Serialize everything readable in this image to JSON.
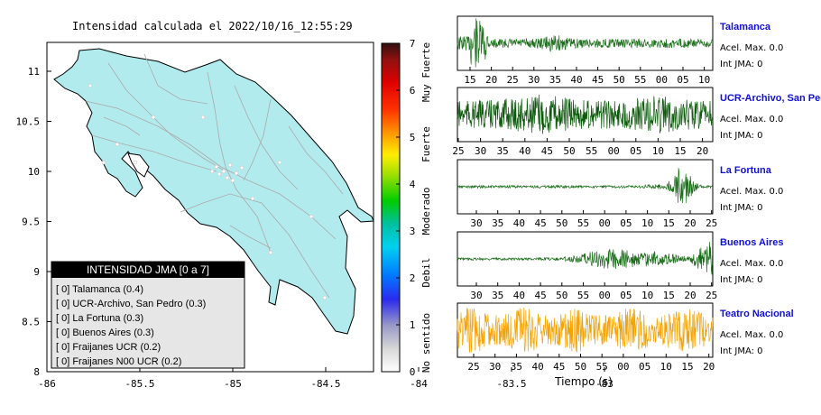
{
  "map": {
    "title": "Intensidad calculada el 2022/10/16_12:55:29",
    "xticks": [
      "-86",
      "-85.5",
      "-85",
      "-84.5",
      "-84",
      "-83.5",
      "-83"
    ],
    "yticks": [
      "8",
      "8.5",
      "9",
      "9.5",
      "10",
      "10.5",
      "11"
    ],
    "legend": {
      "header": "INTENSIDAD JMA [0 a 7]",
      "items": [
        "[ 0]  Talamanca (0.4)",
        "[ 0]  UCR-Archivo, San Pedro (0.3)",
        "[ 0]  La Fortuna (0.3)",
        "[ 0]  Buenos Aires (0.3)",
        "[ 0]  Fraijanes UCR (0.2)",
        "[ 0]  Fraijanes N00 UCR (0.2)"
      ]
    }
  },
  "colorbar": {
    "ticks": [
      "0",
      "1",
      "2",
      "3",
      "4",
      "5",
      "6",
      "7"
    ],
    "categories": [
      "No sentido",
      "Debil",
      "Moderado",
      "Fuerte",
      "Muy Fuerte"
    ]
  },
  "chart_data": {
    "type": "line",
    "xlabel": "Tiempo (s)",
    "traces": [
      {
        "station": "Talamanca",
        "accel": "Acel. Max. 0.0",
        "intensity": "Int JMA: 0",
        "color": "#1a6e1a",
        "ticks": [
          "15",
          "20",
          "25",
          "30",
          "35",
          "40",
          "45",
          "50",
          "55",
          "00",
          "05",
          "10"
        ],
        "envelope": "early-burst"
      },
      {
        "station": "UCR-Archivo, San Pedro",
        "accel": "Acel. Max. 0.0",
        "intensity": "Int JMA: 0",
        "color": "#0b5a0b",
        "ticks": [
          "25",
          "30",
          "35",
          "40",
          "45",
          "50",
          "55",
          "00",
          "05",
          "10",
          "15",
          "20"
        ],
        "envelope": "uniform-high"
      },
      {
        "station": "La Fortuna",
        "accel": "Acel. Max. 0.0",
        "intensity": "Int JMA: 0",
        "color": "#1a6e1a",
        "ticks": [
          "30",
          "35",
          "40",
          "45",
          "50",
          "55",
          "00",
          "05",
          "10",
          "15",
          "20",
          "25"
        ],
        "envelope": "late-burst"
      },
      {
        "station": "Buenos Aires",
        "accel": "Acel. Max. 0.0",
        "intensity": "Int JMA: 0",
        "color": "#1a6e1a",
        "ticks": [
          "30",
          "35",
          "40",
          "45",
          "50",
          "55",
          "00",
          "05",
          "10",
          "15",
          "20",
          "25"
        ],
        "envelope": "growing"
      },
      {
        "station": "Teatro Nacional",
        "accel": "Acel. Max. 0.0",
        "intensity": "Int JMA: 0",
        "color": "#f5a300",
        "ticks": [
          "25",
          "30",
          "35",
          "40",
          "45",
          "50",
          "55",
          "00",
          "05",
          "10",
          "15",
          "20"
        ],
        "envelope": "uniform-max"
      }
    ]
  }
}
